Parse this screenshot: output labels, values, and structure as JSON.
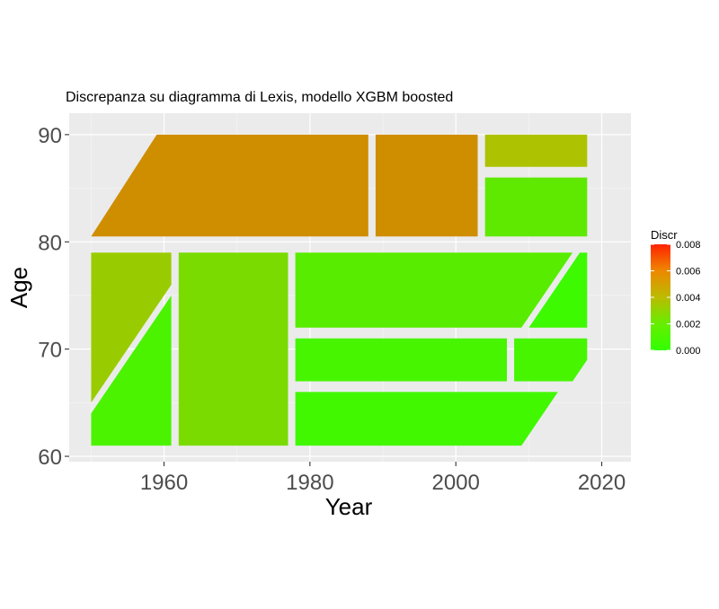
{
  "chart_data": {
    "type": "heatmap",
    "title": "Discrepanza su diagramma di Lexis, modello XGBM boosted",
    "xlabel": "Year",
    "ylabel": "Age",
    "xlim": [
      1947,
      2024
    ],
    "ylim": [
      59.5,
      92
    ],
    "x_ticks": [
      1960,
      1980,
      2000,
      2020
    ],
    "x_tick_labels": [
      "1960",
      "1980",
      "2000",
      "2020"
    ],
    "y_ticks": [
      60,
      70,
      80,
      90
    ],
    "y_tick_labels": [
      "60",
      "70",
      "80",
      "90"
    ],
    "grid": true,
    "legend": {
      "title": "Discr",
      "position": "right",
      "range": [
        0,
        0.008
      ],
      "breaks": [
        "0.000",
        "0.002",
        "0.004",
        "0.006",
        "0.008"
      ],
      "colors": [
        "#33ff00",
        "#ff2200"
      ]
    },
    "regions": [
      {
        "discr": 0.0052,
        "vertices": [
          [
            1950,
            80.5
          ],
          [
            1959,
            90
          ],
          [
            1988,
            90
          ],
          [
            1988,
            80.5
          ]
        ]
      },
      {
        "discr": 0.0052,
        "vertices": [
          [
            1989,
            80.5
          ],
          [
            1989,
            90
          ],
          [
            2003,
            90
          ],
          [
            2003,
            80.5
          ]
        ]
      },
      {
        "discr": 0.0036,
        "vertices": [
          [
            2004,
            87
          ],
          [
            2004,
            90
          ],
          [
            2018,
            90
          ],
          [
            2018,
            87
          ]
        ]
      },
      {
        "discr": 0.0013,
        "vertices": [
          [
            2004,
            80.5
          ],
          [
            2004,
            86
          ],
          [
            2018,
            86
          ],
          [
            2018,
            80.5
          ]
        ]
      },
      {
        "discr": 0.003,
        "vertices": [
          [
            1950,
            65
          ],
          [
            1950,
            79
          ],
          [
            1961,
            79
          ],
          [
            1961,
            76
          ]
        ]
      },
      {
        "discr": 0.0007,
        "vertices": [
          [
            1950,
            61
          ],
          [
            1950,
            64
          ],
          [
            1961,
            75
          ],
          [
            1961,
            61
          ]
        ]
      },
      {
        "discr": 0.0021,
        "vertices": [
          [
            1962,
            61
          ],
          [
            1962,
            79
          ],
          [
            1977,
            79
          ],
          [
            1977,
            61
          ]
        ]
      },
      {
        "discr": 0.0011,
        "vertices": [
          [
            1978,
            72
          ],
          [
            1978,
            79
          ],
          [
            2016,
            79
          ],
          [
            2009,
            72
          ]
        ]
      },
      {
        "discr": 0.0003,
        "vertices": [
          [
            2010,
            72
          ],
          [
            2017,
            79
          ],
          [
            2018,
            79
          ],
          [
            2018,
            72
          ]
        ]
      },
      {
        "discr": 0.0006,
        "vertices": [
          [
            1978,
            67
          ],
          [
            1978,
            71
          ],
          [
            2007,
            71
          ],
          [
            2007,
            67
          ]
        ]
      },
      {
        "discr": 0.0006,
        "vertices": [
          [
            2008,
            67
          ],
          [
            2008,
            71
          ],
          [
            2018,
            71
          ],
          [
            2018,
            69
          ],
          [
            2016,
            67
          ]
        ]
      },
      {
        "discr": 0.0004,
        "vertices": [
          [
            1978,
            61
          ],
          [
            1978,
            66
          ],
          [
            2014,
            66
          ],
          [
            2009,
            61
          ]
        ]
      }
    ]
  }
}
